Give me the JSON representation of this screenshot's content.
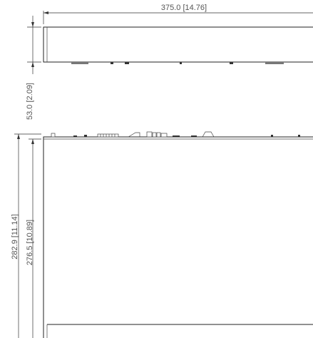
{
  "drawing": {
    "title": "",
    "units_note": "",
    "dimensions": {
      "width_label": "375.0  [14.76]",
      "height_label": "53.0  [2.09]",
      "depth_outer_label": "282.9  [11.14]",
      "depth_inner_label": "276.5  [10.89]"
    },
    "views": [
      "front-view",
      "top-view"
    ],
    "colors": {
      "line": "#222222",
      "text": "#555555",
      "background": "#ffffff"
    }
  }
}
